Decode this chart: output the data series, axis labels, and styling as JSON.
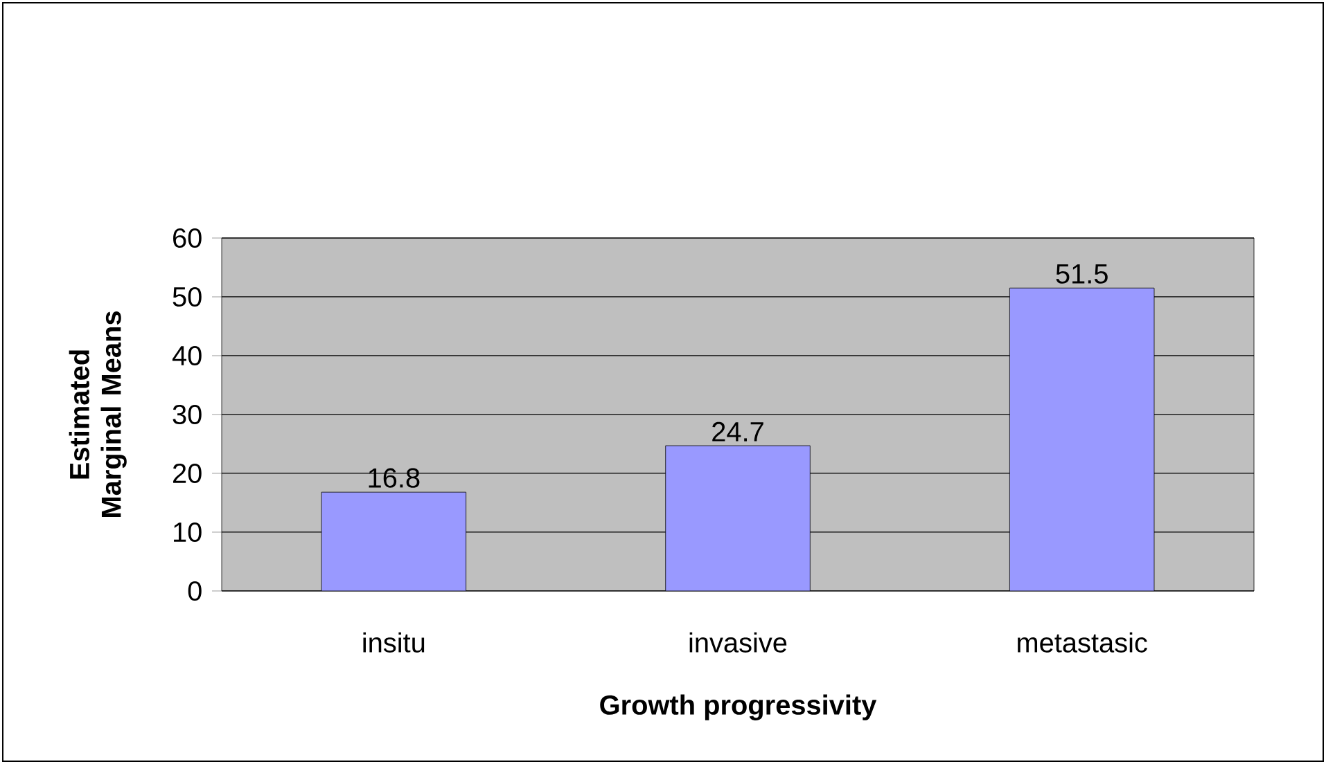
{
  "chart_data": {
    "type": "bar",
    "xlabel": "Growth progressivity",
    "ylabel": "Estimated Marginal Means",
    "categories": [
      "insitu",
      "invasive",
      "metastasic"
    ],
    "values": [
      16.8,
      24.7,
      51.5
    ],
    "color": "#9999ff",
    "ylim": [
      0,
      60
    ],
    "yticks": [
      0,
      10,
      20,
      30,
      40,
      50,
      60
    ],
    "grid": "y",
    "data_labels": true
  }
}
